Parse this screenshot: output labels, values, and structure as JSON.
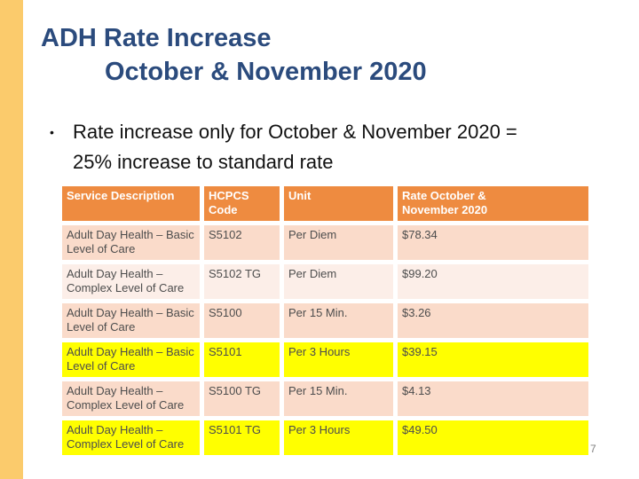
{
  "slide": {
    "title_line1": "ADH Rate Increase",
    "title_line2": "October & November 2020",
    "bullet_marker": "•",
    "bullet_line1": "Rate increase only for October & November 2020 =",
    "bullet_line2": "25% increase to standard rate",
    "page_number": "7"
  },
  "table": {
    "headers": [
      "Service Description",
      "HCPCS Code",
      "Unit",
      "Rate October &\nNovember 2020"
    ],
    "column_keys": [
      "service-description",
      "hcpcs-code",
      "unit",
      "rate"
    ],
    "rows": [
      {
        "style": "peach",
        "cells": [
          "Adult Day Health – Basic Level of Care",
          "S5102",
          "Per Diem",
          "$78.34"
        ]
      },
      {
        "style": "light",
        "cells": [
          "Adult Day Health – Complex Level of Care",
          "S5102 TG",
          "Per Diem",
          "$99.20"
        ]
      },
      {
        "style": "peach",
        "cells": [
          "Adult Day Health – Basic Level of Care",
          "S5100",
          "Per 15 Min.",
          "$3.26"
        ]
      },
      {
        "style": "yellow",
        "cells": [
          "Adult Day Health – Basic Level of Care",
          "S5101",
          "Per 3 Hours",
          "$39.15"
        ]
      },
      {
        "style": "peach",
        "cells": [
          "Adult Day Health – Complex Level of Care",
          "S5100 TG",
          "Per 15 Min.",
          "$4.13"
        ]
      },
      {
        "style": "yellow",
        "cells": [
          "Adult Day Health – Complex Level of Care",
          "S5101 TG",
          "Per 3 Hours",
          "$49.50"
        ]
      }
    ]
  },
  "colors": {
    "accent_stripe": "#FBCB6C",
    "title_text": "#2B4B7D",
    "table_header_bg": "#EE8B40",
    "table_header_text": "#FFFFFF",
    "row_peach": "#FADBCA",
    "row_light": "#FCEEE8",
    "row_highlight_yellow": "#FFFF00",
    "cell_text": "#4D4D4D",
    "page_number_text": "#7F7F7F"
  }
}
